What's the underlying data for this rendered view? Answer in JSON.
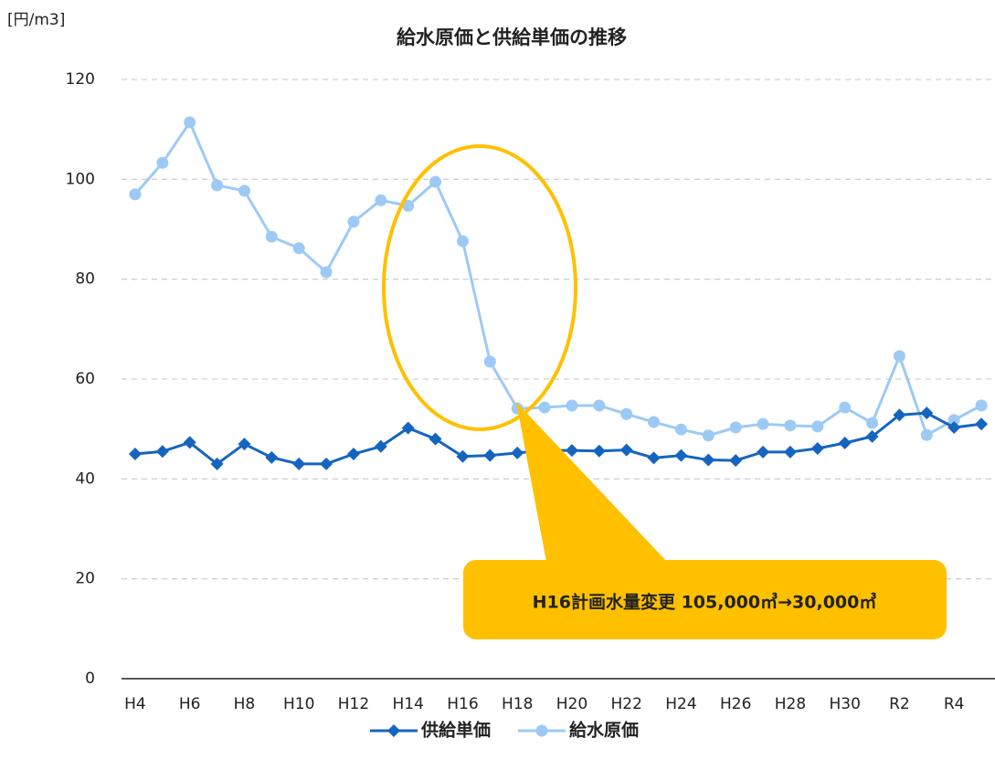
{
  "chart_data": {
    "type": "line",
    "title": "給水原価と供給単価の推移",
    "y_label": "[円/m3]",
    "categories": [
      "H4",
      null,
      "H6",
      null,
      "H8",
      null,
      "H10",
      null,
      "H12",
      null,
      "H14",
      null,
      "H16",
      null,
      "H18",
      null,
      "H20",
      null,
      "H22",
      null,
      "H24",
      null,
      "H26",
      null,
      "H28",
      null,
      "H30",
      null,
      "R2",
      null,
      "R4",
      null
    ],
    "series": [
      {
        "name": "供給単価",
        "color": "#1565c0",
        "marker": "diamond",
        "values": [
          45,
          45.5,
          47.3,
          43,
          47,
          44.3,
          43,
          43,
          45,
          46.5,
          50.2,
          48,
          44.5,
          44.7,
          45.2,
          45.7,
          45.7,
          45.6,
          45.8,
          44.2,
          44.7,
          43.8,
          43.7,
          45.4,
          45.4,
          46.1,
          47.2,
          48.5,
          52.8,
          53.2,
          50.3,
          51
        ]
      },
      {
        "name": "給水原価",
        "color": "#9dcaf5",
        "marker": "circle",
        "values": [
          97,
          103.3,
          111.4,
          98.8,
          97.7,
          88.5,
          86.2,
          81.4,
          91.5,
          95.8,
          94.7,
          99.5,
          87.6,
          63.5,
          54.1,
          54.3,
          54.7,
          54.7,
          53,
          51.4,
          49.9,
          48.7,
          50.3,
          51,
          50.7,
          50.5,
          54.3,
          51.2,
          64.6,
          48.8,
          51.8,
          54.7
        ]
      }
    ],
    "ylim": [
      0,
      120
    ],
    "yticks": [
      0,
      20,
      40,
      60,
      80,
      100,
      120
    ],
    "grid": true,
    "legend": "bottom",
    "annotation": "H16計画水量変更  105,000㎥→30,000㎥"
  }
}
